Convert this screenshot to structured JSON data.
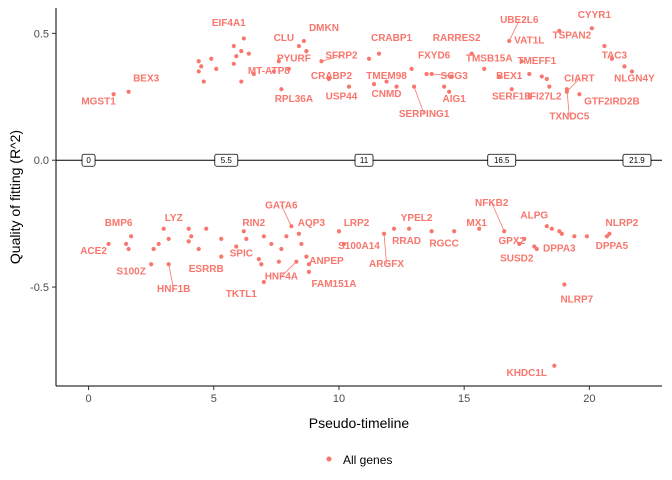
{
  "chart_data": {
    "type": "scatter",
    "xlabel": "Pseudo-timeline",
    "ylabel": "Quality of fitting (R^2)",
    "xlim": [
      -1.3,
      22.9
    ],
    "ylim": [
      -0.89,
      0.6
    ],
    "x_ticks": [
      0,
      5,
      10,
      15,
      20
    ],
    "y_ticks": [
      -0.5,
      0.0,
      0.5
    ],
    "x_tick_labels": [
      "0",
      "5",
      "10",
      "15",
      "20"
    ],
    "y_tick_labels": [
      "-0.5",
      "0.0",
      "0.5"
    ],
    "reference_line_y": 0,
    "timeline_markers": [
      {
        "x": 0,
        "label": "0"
      },
      {
        "x": 5.5,
        "label": "5.5"
      },
      {
        "x": 11,
        "label": "11"
      },
      {
        "x": 16.5,
        "label": "16.5"
      },
      {
        "x": 21.9,
        "label": "21.9"
      }
    ],
    "legend": {
      "entries": [
        "All genes"
      ],
      "position": "bottom"
    },
    "grid": false,
    "series": [
      {
        "name": "All genes",
        "color": "#F8766D",
        "points": [
          {
            "x": 1.0,
            "y": 0.26,
            "label": "MGST1",
            "lx": 0.4,
            "ly": 0.22,
            "conn": false
          },
          {
            "x": 1.6,
            "y": 0.27,
            "label": "BEX3",
            "lx": 2.3,
            "ly": 0.31,
            "conn": false
          },
          {
            "x": 4.4,
            "y": 0.35
          },
          {
            "x": 4.5,
            "y": 0.37
          },
          {
            "x": 4.4,
            "y": 0.39
          },
          {
            "x": 4.6,
            "y": 0.31
          },
          {
            "x": 4.9,
            "y": 0.4
          },
          {
            "x": 5.1,
            "y": 0.36
          },
          {
            "x": 5.8,
            "y": 0.45,
            "label": "EIF4A1",
            "lx": 5.6,
            "ly": 0.53,
            "conn": false
          },
          {
            "x": 5.8,
            "y": 0.38
          },
          {
            "x": 5.9,
            "y": 0.41
          },
          {
            "x": 6.1,
            "y": 0.43
          },
          {
            "x": 6.1,
            "y": 0.31
          },
          {
            "x": 6.2,
            "y": 0.48
          },
          {
            "x": 6.4,
            "y": 0.42
          },
          {
            "x": 6.6,
            "y": 0.34,
            "label": "MT-ATP8",
            "lx": 7.2,
            "ly": 0.34,
            "conn": false
          },
          {
            "x": 7.4,
            "y": 0.35
          },
          {
            "x": 7.6,
            "y": 0.39
          },
          {
            "x": 7.7,
            "y": 0.28,
            "label": "RPL36A",
            "lx": 8.2,
            "ly": 0.23,
            "conn": false
          },
          {
            "x": 8.0,
            "y": 0.36,
            "label": "PYURF",
            "lx": 8.2,
            "ly": 0.39,
            "conn": false
          },
          {
            "x": 8.4,
            "y": 0.45,
            "label": "CLU",
            "lx": 7.8,
            "ly": 0.47,
            "conn": false
          },
          {
            "x": 8.6,
            "y": 0.47,
            "label": "DMKN",
            "lx": 9.4,
            "ly": 0.51,
            "conn": false
          },
          {
            "x": 8.7,
            "y": 0.43
          },
          {
            "x": 9.3,
            "y": 0.39,
            "label": "SFRP2",
            "lx": 10.1,
            "ly": 0.4,
            "conn": true
          },
          {
            "x": 9.6,
            "y": 0.32,
            "label": "CRABP2",
            "lx": 9.7,
            "ly": 0.32,
            "conn": false
          },
          {
            "x": 10.4,
            "y": 0.29,
            "label": "USP44",
            "lx": 10.1,
            "ly": 0.24,
            "conn": false
          },
          {
            "x": 11.2,
            "y": 0.4
          },
          {
            "x": 11.4,
            "y": 0.3
          },
          {
            "x": 11.6,
            "y": 0.42,
            "label": "CRABP1",
            "lx": 12.1,
            "ly": 0.47,
            "conn": false
          },
          {
            "x": 11.9,
            "y": 0.31,
            "label": "TMEM98",
            "lx": 11.9,
            "ly": 0.32,
            "conn": false
          },
          {
            "x": 12.3,
            "y": 0.29,
            "label": "CNMD",
            "lx": 11.9,
            "ly": 0.25,
            "conn": false
          },
          {
            "x": 12.9,
            "y": 0.36
          },
          {
            "x": 13.0,
            "y": 0.29,
            "label": "SERPING1",
            "lx": 13.4,
            "ly": 0.17,
            "conn": true
          },
          {
            "x": 13.5,
            "y": 0.34,
            "label": "FXYD6",
            "lx": 13.8,
            "ly": 0.4,
            "conn": false
          },
          {
            "x": 13.7,
            "y": 0.34,
            "label": "SCG3",
            "lx": 14.6,
            "ly": 0.32,
            "conn": true
          },
          {
            "x": 14.2,
            "y": 0.29
          },
          {
            "x": 14.4,
            "y": 0.27
          },
          {
            "x": 14.5,
            "y": 0.33,
            "label": "AIG1",
            "lx": 14.6,
            "ly": 0.23,
            "conn": false
          },
          {
            "x": 15.3,
            "y": 0.42,
            "label": "RARRES2",
            "lx": 14.7,
            "ly": 0.47,
            "conn": false
          },
          {
            "x": 15.8,
            "y": 0.36,
            "label": "TMSB15A",
            "lx": 16.0,
            "ly": 0.39,
            "conn": false
          },
          {
            "x": 16.4,
            "y": 0.33,
            "label": "BEX1",
            "lx": 16.8,
            "ly": 0.32,
            "conn": false
          },
          {
            "x": 16.8,
            "y": 0.47,
            "label": "UBE2L6",
            "lx": 17.2,
            "ly": 0.54,
            "conn": true
          },
          {
            "x": 16.9,
            "y": 0.28,
            "label": "SERF1B",
            "lx": 16.9,
            "ly": 0.24,
            "conn": false
          },
          {
            "x": 17.3,
            "y": 0.39,
            "label": "VAT1L",
            "lx": 17.6,
            "ly": 0.46,
            "conn": false
          },
          {
            "x": 17.6,
            "y": 0.34,
            "label": "TMEFF1",
            "lx": 17.9,
            "ly": 0.38,
            "conn": false
          },
          {
            "x": 18.1,
            "y": 0.33
          },
          {
            "x": 18.3,
            "y": 0.32
          },
          {
            "x": 18.4,
            "y": 0.29,
            "label": "IFI27L2",
            "lx": 18.2,
            "ly": 0.24,
            "conn": false
          },
          {
            "x": 18.8,
            "y": 0.51,
            "label": "TSPAN2",
            "lx": 19.3,
            "ly": 0.48,
            "conn": false
          },
          {
            "x": 19.1,
            "y": 0.27,
            "label": "CIART",
            "lx": 19.6,
            "ly": 0.31,
            "conn": true
          },
          {
            "x": 19.1,
            "y": 0.28,
            "label": "TXNDC5",
            "lx": 19.2,
            "ly": 0.16,
            "conn": true
          },
          {
            "x": 19.6,
            "y": 0.26,
            "label": "GTF2IRD2B",
            "lx": 20.9,
            "ly": 0.22,
            "conn": false
          },
          {
            "x": 20.1,
            "y": 0.52,
            "label": "CYYR1",
            "lx": 20.2,
            "ly": 0.56,
            "conn": false
          },
          {
            "x": 20.6,
            "y": 0.45
          },
          {
            "x": 20.9,
            "y": 0.4
          },
          {
            "x": 21.4,
            "y": 0.37,
            "label": "TAC3",
            "lx": 21.0,
            "ly": 0.4,
            "conn": false
          },
          {
            "x": 21.7,
            "y": 0.35,
            "label": "NLGN4Y",
            "lx": 21.8,
            "ly": 0.31,
            "conn": false
          },
          {
            "x": 0.8,
            "y": -0.33,
            "label": "ACE2",
            "lx": 0.2,
            "ly": -0.37,
            "conn": false
          },
          {
            "x": 1.5,
            "y": -0.33
          },
          {
            "x": 1.6,
            "y": -0.35
          },
          {
            "x": 1.7,
            "y": -0.3,
            "label": "BMP6",
            "lx": 1.2,
            "ly": -0.26,
            "conn": false
          },
          {
            "x": 2.5,
            "y": -0.41,
            "label": "S100Z",
            "lx": 1.7,
            "ly": -0.45,
            "conn": false
          },
          {
            "x": 2.6,
            "y": -0.35
          },
          {
            "x": 2.8,
            "y": -0.33
          },
          {
            "x": 3.0,
            "y": -0.27,
            "label": "LYZ",
            "lx": 3.4,
            "ly": -0.24,
            "conn": false
          },
          {
            "x": 3.2,
            "y": -0.41,
            "label": "HNF1B",
            "lx": 3.4,
            "ly": -0.52,
            "conn": true
          },
          {
            "x": 3.2,
            "y": -0.31
          },
          {
            "x": 4.0,
            "y": -0.32
          },
          {
            "x": 4.0,
            "y": -0.27
          },
          {
            "x": 4.1,
            "y": -0.3
          },
          {
            "x": 4.4,
            "y": -0.35,
            "label": "ESRRB",
            "lx": 4.7,
            "ly": -0.44,
            "conn": false
          },
          {
            "x": 4.7,
            "y": -0.27
          },
          {
            "x": 5.3,
            "y": -0.31
          },
          {
            "x": 5.3,
            "y": -0.38
          },
          {
            "x": 5.9,
            "y": -0.34,
            "label": "SPIC",
            "lx": 6.1,
            "ly": -0.38,
            "conn": false
          },
          {
            "x": 6.2,
            "y": -0.28,
            "label": "RIN2",
            "lx": 6.6,
            "ly": -0.26,
            "conn": false
          },
          {
            "x": 6.3,
            "y": -0.31
          },
          {
            "x": 6.8,
            "y": -0.39
          },
          {
            "x": 6.9,
            "y": -0.41
          },
          {
            "x": 7.0,
            "y": -0.48,
            "label": "TKTL1",
            "lx": 6.1,
            "ly": -0.54,
            "conn": false
          },
          {
            "x": 7.0,
            "y": -0.3
          },
          {
            "x": 7.3,
            "y": -0.33
          },
          {
            "x": 7.6,
            "y": -0.4
          },
          {
            "x": 7.7,
            "y": -0.35
          },
          {
            "x": 7.9,
            "y": -0.3
          },
          {
            "x": 8.1,
            "y": -0.26,
            "label": "GATA6",
            "lx": 7.7,
            "ly": -0.19,
            "conn": true
          },
          {
            "x": 8.3,
            "y": -0.4,
            "label": "HNF4A",
            "lx": 7.7,
            "ly": -0.47,
            "conn": true
          },
          {
            "x": 8.4,
            "y": -0.29,
            "label": "AQP3",
            "lx": 8.9,
            "ly": -0.26,
            "conn": false
          },
          {
            "x": 8.5,
            "y": -0.33
          },
          {
            "x": 8.7,
            "y": -0.38
          },
          {
            "x": 8.8,
            "y": -0.41,
            "label": "ANPEP",
            "lx": 9.5,
            "ly": -0.41,
            "conn": false
          },
          {
            "x": 8.8,
            "y": -0.44,
            "label": "FAM151A",
            "lx": 9.8,
            "ly": -0.5,
            "conn": false
          },
          {
            "x": 10.0,
            "y": -0.28,
            "label": "LRP2",
            "lx": 10.7,
            "ly": -0.26,
            "conn": false
          },
          {
            "x": 10.2,
            "y": -0.33,
            "label": "S100A14",
            "lx": 10.8,
            "ly": -0.35,
            "conn": false
          },
          {
            "x": 11.8,
            "y": -0.29,
            "label": "ARGFX",
            "lx": 11.9,
            "ly": -0.42,
            "conn": true
          },
          {
            "x": 12.2,
            "y": -0.27,
            "label": "RRAD",
            "lx": 12.7,
            "ly": -0.33,
            "conn": false
          },
          {
            "x": 12.8,
            "y": -0.27,
            "label": "YPEL2",
            "lx": 13.1,
            "ly": -0.24,
            "conn": false
          },
          {
            "x": 13.7,
            "y": -0.28,
            "label": "RGCC",
            "lx": 14.2,
            "ly": -0.34,
            "conn": false
          },
          {
            "x": 14.6,
            "y": -0.28
          },
          {
            "x": 15.6,
            "y": -0.27,
            "label": "MX1",
            "lx": 15.5,
            "ly": -0.26,
            "conn": false
          },
          {
            "x": 16.6,
            "y": -0.28,
            "label": "NFKB2",
            "lx": 16.1,
            "ly": -0.18,
            "conn": true
          },
          {
            "x": 17.2,
            "y": -0.33,
            "label": "GPX2",
            "lx": 16.9,
            "ly": -0.33,
            "conn": false
          },
          {
            "x": 17.4,
            "y": -0.31
          },
          {
            "x": 17.8,
            "y": -0.34
          },
          {
            "x": 17.9,
            "y": -0.35,
            "label": "SUSD2",
            "lx": 17.1,
            "ly": -0.4,
            "conn": false
          },
          {
            "x": 18.3,
            "y": -0.26,
            "label": "ALPG",
            "lx": 17.8,
            "ly": -0.23,
            "conn": false
          },
          {
            "x": 18.5,
            "y": -0.27
          },
          {
            "x": 18.8,
            "y": -0.28
          },
          {
            "x": 18.9,
            "y": -0.29,
            "label": "DPPA3",
            "lx": 18.8,
            "ly": -0.36,
            "conn": false
          },
          {
            "x": 19.0,
            "y": -0.49,
            "label": "NLRP7",
            "lx": 19.5,
            "ly": -0.56,
            "conn": false
          },
          {
            "x": 19.4,
            "y": -0.3
          },
          {
            "x": 19.9,
            "y": -0.3
          },
          {
            "x": 20.7,
            "y": -0.3,
            "label": "DPPA5",
            "lx": 20.9,
            "ly": -0.35,
            "conn": false
          },
          {
            "x": 20.8,
            "y": -0.29,
            "label": "NLRP2",
            "lx": 21.3,
            "ly": -0.26,
            "conn": false
          },
          {
            "x": 18.6,
            "y": -0.81,
            "label": "KHDC1L",
            "lx": 17.5,
            "ly": -0.85,
            "conn": false
          }
        ]
      }
    ]
  }
}
